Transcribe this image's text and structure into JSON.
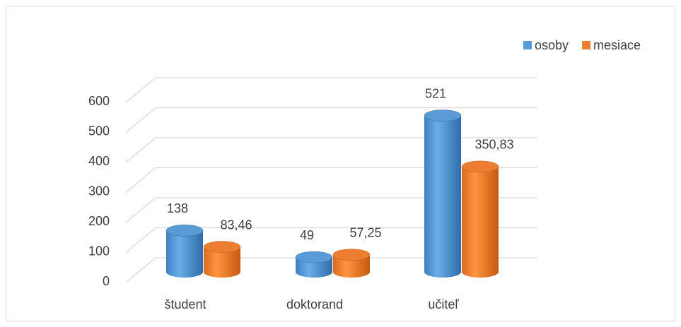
{
  "chart_data": {
    "type": "bar3d",
    "categories": [
      "študent",
      "doktorand",
      "učiteľ"
    ],
    "series": [
      {
        "name": "osoby",
        "color": "#5b9bd5",
        "values": [
          138,
          49,
          521
        ]
      },
      {
        "name": "mesiace",
        "color": "#ed7d31",
        "values": [
          83.46,
          57.25,
          350.83
        ],
        "value_labels": [
          "83,46",
          "57,25",
          "350,83"
        ]
      }
    ],
    "ylim": [
      0,
      600
    ],
    "yticks": [
      0,
      100,
      200,
      300,
      400,
      500,
      600
    ],
    "grid": true,
    "legend": "top-right"
  }
}
